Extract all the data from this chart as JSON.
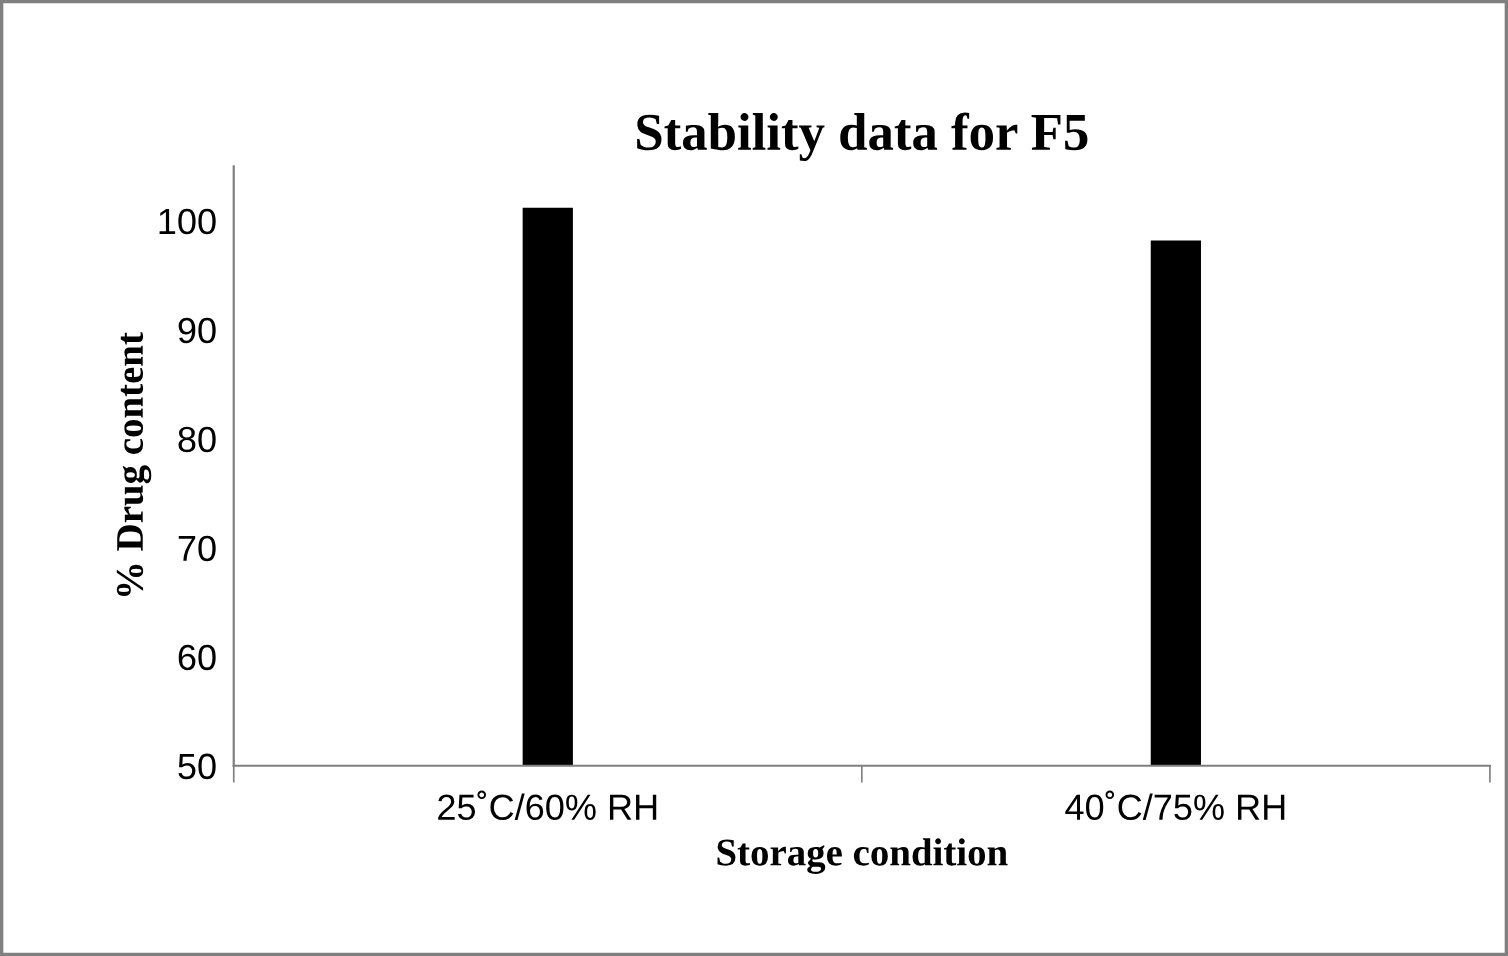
{
  "chart_data": {
    "type": "bar",
    "title": "Stability data for F5",
    "xlabel": "Storage condition",
    "ylabel": "% Drug content",
    "categories": [
      "25˚C/60% RH",
      "40˚C/75% RH"
    ],
    "values": [
      101.2,
      98.2
    ],
    "color": "#000000",
    "ylim": [
      50,
      105
    ],
    "yticks": [
      50,
      60,
      70,
      80,
      90,
      100
    ],
    "grid": false,
    "legend": false
  }
}
